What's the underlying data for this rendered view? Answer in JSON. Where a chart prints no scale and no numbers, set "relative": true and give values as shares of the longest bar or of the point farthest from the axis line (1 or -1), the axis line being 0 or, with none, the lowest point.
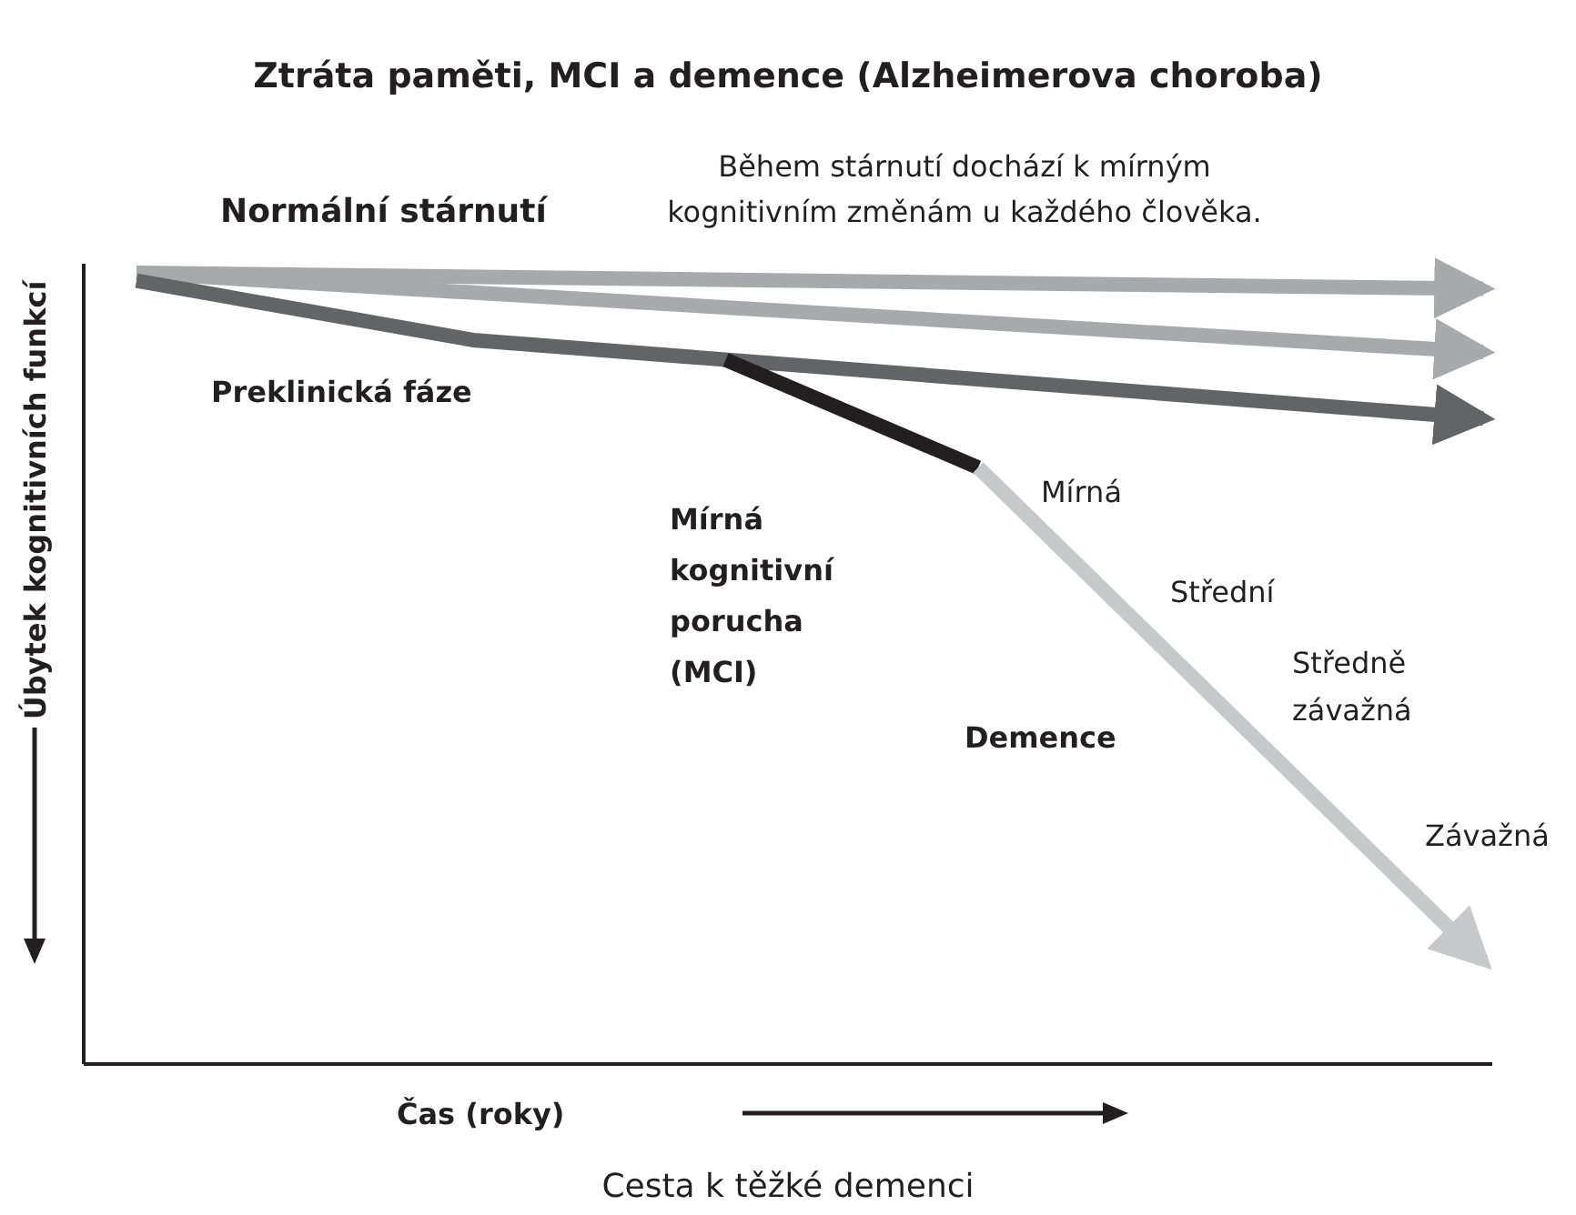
{
  "chart_data": {
    "type": "line",
    "title": "Ztráta paměti, MCI a demence (Alzheimerova choroba)",
    "xlabel": "Čas (roky)",
    "ylabel": "Úbytek kognitivních funkcí",
    "relative": true,
    "grid": false,
    "marker": "none",
    "line_style": "solid",
    "categories": [
      null,
      null,
      null,
      null,
      null,
      null,
      null,
      null,
      null,
      null,
      null,
      null,
      null,
      null,
      null,
      null,
      null
    ],
    "series": [
      {
        "color": "#a7a9ac",
        "values": [
          1,
          null,
          null,
          null,
          null,
          null,
          null,
          null,
          null,
          null,
          null,
          null,
          null,
          null,
          null,
          null,
          0.98
        ]
      },
      {
        "color": "#a7a9ac",
        "values": [
          1,
          null,
          null,
          null,
          null,
          null,
          null,
          null,
          null,
          null,
          null,
          null,
          null,
          null,
          null,
          null,
          0.9
        ]
      },
      {
        "color": "#636466",
        "values": [
          0.99,
          null,
          null,
          null,
          0.915,
          null,
          null,
          null,
          null,
          null,
          null,
          null,
          null,
          null,
          null,
          null,
          0.816
        ]
      },
      {
        "color": "#231f20",
        "values": [
          null,
          null,
          null,
          null,
          null,
          null,
          null,
          0.89,
          null,
          null,
          0.754,
          null,
          null,
          null,
          null,
          null,
          null
        ]
      },
      {
        "color": "#c7c8ca",
        "values": [
          null,
          null,
          null,
          null,
          null,
          null,
          null,
          null,
          null,
          null,
          0.754,
          null,
          null,
          null,
          null,
          null,
          0.13
        ]
      }
    ],
    "annotations": [
      "Během stárnutí dochází k mírným kognitivním změnám u každého člověka.",
      "Normální stárnutí",
      "Preklinická fáze",
      "Mírná kognitivní porucha (MCI)",
      "Demence",
      "Mírná",
      "Střední",
      "Středně závažná",
      "Závažná",
      "Cesta k těžké demenci"
    ]
  }
}
